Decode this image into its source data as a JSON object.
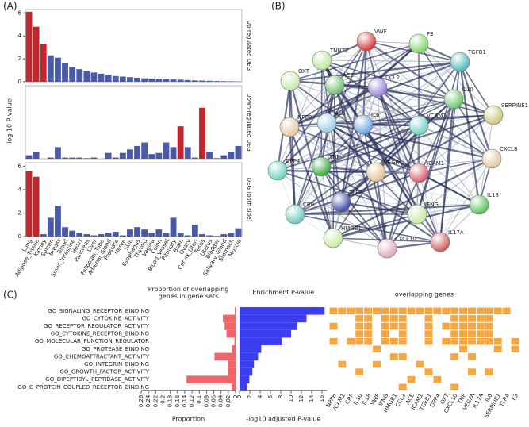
{
  "panel_labels": [
    "(A)",
    "(B)",
    "(C)"
  ],
  "chart_data": [
    {
      "type": "bar",
      "side_label": "Up-regulated DEG",
      "values": [
        6.1,
        4.8,
        3.3,
        2.3,
        2.1,
        1.6,
        1.3,
        1.1,
        0.9,
        0.8,
        0.7,
        0.6,
        0.5,
        0.45,
        0.4,
        0.35,
        0.3,
        0.28,
        0.25,
        0.22,
        0.2,
        0.18,
        0.15,
        0.12,
        0.1,
        0.08,
        0.06,
        0.05,
        0.04,
        0.03
      ],
      "colors": [
        "#c0272d",
        "#c0272d",
        "#c0272d",
        "#4a5aa8",
        "#4a5aa8",
        "#4a5aa8",
        "#4a5aa8",
        "#4a5aa8",
        "#4a5aa8",
        "#4a5aa8",
        "#4a5aa8",
        "#4a5aa8",
        "#4a5aa8",
        "#4a5aa8",
        "#4a5aa8",
        "#4a5aa8",
        "#4a5aa8",
        "#4a5aa8",
        "#4a5aa8",
        "#4a5aa8",
        "#4a5aa8",
        "#4a5aa8",
        "#4a5aa8",
        "#4a5aa8",
        "#4a5aa8",
        "#4a5aa8",
        "#4a5aa8",
        "#4a5aa8",
        "#4a5aa8",
        "#4a5aa8"
      ],
      "ylim": [
        0,
        6.3
      ],
      "yticks": [
        0,
        2,
        4,
        6
      ]
    },
    {
      "type": "bar",
      "side_label": "Down-regulated DEG",
      "ylabel": "-log 10 P-value",
      "values": [
        0.3,
        0.6,
        0,
        0.1,
        1.0,
        0.1,
        0.1,
        0.1,
        0.05,
        0.1,
        0,
        0.5,
        0.1,
        0.5,
        0.8,
        1.1,
        1.4,
        0.4,
        0.5,
        1.4,
        1.0,
        2.8,
        1.0,
        0.1,
        4.4,
        0.6,
        0.05,
        0.3,
        0.6,
        1.1
      ],
      "colors": [
        "#4a5aa8",
        "#4a5aa8",
        "#4a5aa8",
        "#4a5aa8",
        "#4a5aa8",
        "#4a5aa8",
        "#4a5aa8",
        "#4a5aa8",
        "#4a5aa8",
        "#4a5aa8",
        "#4a5aa8",
        "#4a5aa8",
        "#4a5aa8",
        "#4a5aa8",
        "#4a5aa8",
        "#4a5aa8",
        "#4a5aa8",
        "#4a5aa8",
        "#4a5aa8",
        "#4a5aa8",
        "#4a5aa8",
        "#c0272d",
        "#4a5aa8",
        "#4a5aa8",
        "#c0272d",
        "#4a5aa8",
        "#4a5aa8",
        "#4a5aa8",
        "#4a5aa8",
        "#4a5aa8"
      ],
      "ylim": [
        0,
        6.3
      ]
    },
    {
      "type": "bar",
      "side_label": "DEG (both side)",
      "categories": [
        "Lung",
        "Adipose_Tissue",
        "Kidney",
        "Spleen",
        "Breast",
        "Blood",
        "Small_Intestine",
        "Heart",
        "Pancreas",
        "Liver",
        "Fallopian_Tube",
        "Adrenal_Gland",
        "Prostate",
        "Nerve",
        "Skin",
        "Esophagus",
        "Thyroid",
        "Vagina",
        "Colon",
        "Blood_Vessel",
        "Pituitary",
        "Brain",
        "Ovary",
        "Cervix_Uteri",
        "Testis",
        "Uterus",
        "Bladder",
        "Salivary_Gland",
        "Stomach",
        "Muscle"
      ],
      "values": [
        5.6,
        5.1,
        0.2,
        1.6,
        2.6,
        0.8,
        0.5,
        0.3,
        0.2,
        0.1,
        0.2,
        0.3,
        0.4,
        0.1,
        0.6,
        0.8,
        0.6,
        0.3,
        0.6,
        0.3,
        1.6,
        0.3,
        0.1,
        1.0,
        0.2,
        0.1,
        0.05,
        0.2,
        0.3,
        0.7
      ],
      "colors": [
        "#c0272d",
        "#c0272d",
        "#4a5aa8",
        "#4a5aa8",
        "#4a5aa8",
        "#4a5aa8",
        "#4a5aa8",
        "#4a5aa8",
        "#4a5aa8",
        "#4a5aa8",
        "#4a5aa8",
        "#4a5aa8",
        "#4a5aa8",
        "#4a5aa8",
        "#4a5aa8",
        "#4a5aa8",
        "#4a5aa8",
        "#4a5aa8",
        "#4a5aa8",
        "#4a5aa8",
        "#4a5aa8",
        "#4a5aa8",
        "#4a5aa8",
        "#4a5aa8",
        "#4a5aa8",
        "#4a5aa8",
        "#4a5aa8",
        "#4a5aa8",
        "#4a5aa8",
        "#4a5aa8"
      ],
      "ylim": [
        0,
        6.3
      ],
      "yticks": [
        0,
        2,
        4,
        6
      ]
    },
    {
      "type": "barh",
      "title": "Proportion of overlapping genes in gene sets",
      "xlabel": "Proportion",
      "categories": [
        "GO_SIGNALING_RECEPTOR_BINDING",
        "GO_CYTOKINE_ACTIVITY",
        "GO_RECEPTOR_REGULATOR_ACTIVITY",
        "GO_CYTOKINE_RECEPTOR_BINDING",
        "GO_MOLECULAR_FUNCTION_REGULATOR",
        "GO_PROTEASE_BINDING",
        "GO_CHEMOATTRACTANT_ACTIVITY",
        "GO_INTEGRIN_BINDING",
        "GO_GROWTH_FACTOR_ACTIVITY",
        "GO_DIPEPTIDYL_PEPTIDASE_ACTIVITY",
        "GO_G_PROTEIN_COUPLED_RECEPTOR_BINDING"
      ],
      "values": [
        0.002,
        0.035,
        0.03,
        0.025,
        0.003,
        0.01,
        0.058,
        0.02,
        0.02,
        0.135,
        0.01
      ],
      "color": "#f0646a",
      "xlim": [
        0.26,
        0
      ],
      "xticks": [
        0.26,
        0.24,
        0.22,
        0.2,
        0.18,
        0.16,
        0.14,
        0.12,
        0.1,
        0.08,
        0.06,
        0.04,
        0.02,
        0
      ]
    },
    {
      "type": "barh",
      "title": "Enrichment P-value",
      "xlabel": "-log10 adjusted P-value",
      "values": [
        16.5,
        13,
        11.2,
        10,
        8.2,
        4.2,
        3.6,
        2.8,
        2.5,
        1.9,
        1.5
      ],
      "color": "#3c3cf0",
      "xlim": [
        0,
        17
      ],
      "xticks": [
        0,
        2,
        4,
        6,
        8,
        10,
        12,
        14,
        16
      ]
    }
  ],
  "network": {
    "nodes": [
      "VWF",
      "F3",
      "TGFB1",
      "TNNT2",
      "ACE",
      "OXT",
      "CCL2",
      "IL10",
      "SERPINE1",
      "NPPB",
      "ALB",
      "IL6",
      "VCAM1",
      "CXCL8",
      "DPP4",
      "TNF",
      "VEGFA",
      "ICAM1",
      "CRP",
      "TLR4",
      "IFNG",
      "IL18",
      "HMGB1",
      "CXCL10",
      "IL17A"
    ],
    "colors": [
      "#d23a3a",
      "#7fd66a",
      "#4fb8b8",
      "#b9e89a",
      "#6cc46c",
      "#c6eaa6",
      "#9a7fdc",
      "#6cc46c",
      "#c8c87a",
      "#e3c8a0",
      "#9ad0e6",
      "#6aa6dc",
      "#6cd0c0",
      "#e0c8a0",
      "#6cd0c0",
      "#38a838",
      "#e0c090",
      "#d85a6a",
      "#6cc8c0",
      "#3a48a8",
      "#c6eaa0",
      "#58c058",
      "#c6eaa0",
      "#e0a8b8",
      "#d05a5a"
    ]
  },
  "gene_grid": {
    "title": "overlapping genes",
    "color": "#f5a742",
    "genes": [
      "NPPB",
      "VCAM1",
      "CRP",
      "IL10",
      "IL18",
      "VWF",
      "IFNG",
      "HMGB1",
      "CCL2",
      "ACE",
      "ICAM1",
      "TGFB1",
      "DPP4",
      "OXT",
      "CXCL10",
      "TNF",
      "VEGFA",
      "IL17A",
      "IL6",
      "SERPINE1",
      "TLR4",
      "F3"
    ],
    "matrix": [
      [
        1,
        1,
        1,
        1,
        1,
        1,
        1,
        1,
        1,
        1,
        1,
        1,
        1,
        1,
        1,
        1,
        1,
        1,
        1,
        1,
        1,
        0
      ],
      [
        0,
        0,
        0,
        1,
        1,
        0,
        1,
        1,
        1,
        0,
        0,
        1,
        0,
        0,
        1,
        1,
        1,
        1,
        1,
        0,
        0,
        0
      ],
      [
        1,
        0,
        0,
        1,
        1,
        0,
        1,
        1,
        1,
        0,
        0,
        1,
        0,
        1,
        1,
        1,
        1,
        1,
        1,
        0,
        0,
        0
      ],
      [
        0,
        0,
        0,
        1,
        1,
        0,
        1,
        0,
        1,
        0,
        0,
        1,
        0,
        0,
        1,
        1,
        1,
        1,
        1,
        0,
        0,
        0
      ],
      [
        1,
        0,
        1,
        1,
        1,
        0,
        1,
        1,
        1,
        0,
        0,
        1,
        0,
        1,
        1,
        1,
        1,
        1,
        1,
        1,
        0,
        1
      ],
      [
        0,
        0,
        0,
        0,
        0,
        1,
        0,
        0,
        0,
        0,
        0,
        0,
        0,
        0,
        0,
        1,
        0,
        0,
        0,
        1,
        0,
        1
      ],
      [
        0,
        0,
        0,
        0,
        0,
        0,
        0,
        1,
        1,
        0,
        0,
        0,
        0,
        0,
        1,
        0,
        1,
        0,
        0,
        0,
        0,
        0
      ],
      [
        0,
        1,
        0,
        0,
        0,
        1,
        0,
        0,
        0,
        0,
        1,
        0,
        0,
        0,
        0,
        0,
        0,
        0,
        0,
        0,
        0,
        0
      ],
      [
        0,
        0,
        0,
        1,
        0,
        0,
        0,
        0,
        0,
        0,
        0,
        1,
        0,
        0,
        0,
        0,
        1,
        0,
        1,
        0,
        0,
        0
      ],
      [
        0,
        0,
        0,
        0,
        0,
        0,
        0,
        0,
        0,
        1,
        0,
        0,
        1,
        0,
        0,
        0,
        0,
        0,
        0,
        0,
        0,
        0
      ],
      [
        0,
        0,
        0,
        0,
        0,
        0,
        0,
        0,
        1,
        0,
        0,
        0,
        0,
        0,
        1,
        0,
        0,
        0,
        0,
        0,
        0,
        0
      ]
    ]
  }
}
